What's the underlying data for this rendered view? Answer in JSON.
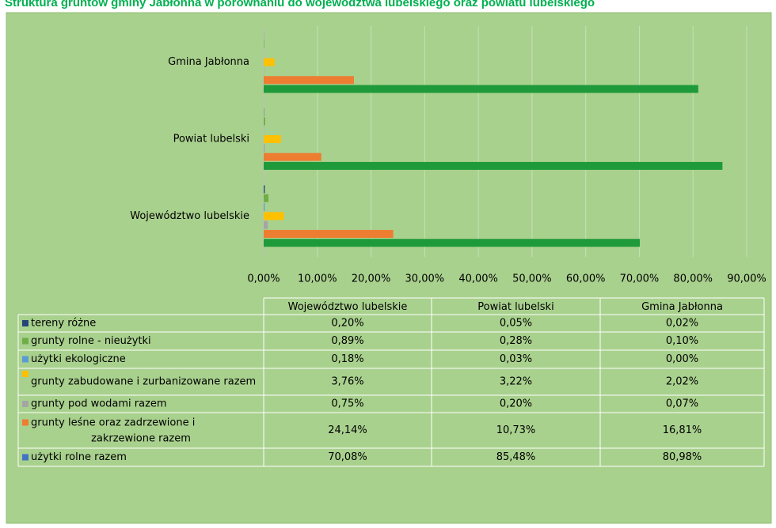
{
  "chart_data": {
    "type": "hbar",
    "title": "Struktura gruntów gminy Jabłonna w porównaniu do województwa lubelskiego oraz powiatu lubelskiego",
    "categories": [
      "Województwo lubelskie",
      "Powiat lubelski",
      "Gmina Jabłonna"
    ],
    "xlim": [
      0,
      90
    ],
    "xticks": [
      {
        "value": 0,
        "label": "0,00%"
      },
      {
        "value": 10,
        "label": "10,00%"
      },
      {
        "value": 20,
        "label": "20,00%"
      },
      {
        "value": 30,
        "label": "30,00%"
      },
      {
        "value": 40,
        "label": "40,00%"
      },
      {
        "value": 50,
        "label": "50,00%"
      },
      {
        "value": 60,
        "label": "60,00%"
      },
      {
        "value": 70,
        "label": "70,00%"
      },
      {
        "value": 80,
        "label": "80,00%"
      },
      {
        "value": 90,
        "label": "90,00%"
      }
    ],
    "grid": true,
    "series": [
      {
        "name": "tereny różne",
        "color": "#264478",
        "key_color": "#264478",
        "values": [
          0.2,
          0.05,
          0.02
        ],
        "value_labels": [
          "0,20%",
          "0,05%",
          "0,02%"
        ]
      },
      {
        "name": "grunty rolne - nieużytki",
        "color": "#70ad47",
        "key_color": "#70ad47",
        "values": [
          0.89,
          0.28,
          0.1
        ],
        "value_labels": [
          "0,89%",
          "0,28%",
          "0,10%"
        ]
      },
      {
        "name": "użytki ekologiczne",
        "color": "#5b9bd5",
        "key_color": "#5b9bd5",
        "values": [
          0.18,
          0.03,
          0.0
        ],
        "value_labels": [
          "0,18%",
          "0,03%",
          "0,00%"
        ]
      },
      {
        "name": "grunty zabudowane i zurbanizowane razem",
        "color": "#ffc000",
        "key_color": "#ffc000",
        "values": [
          3.76,
          3.22,
          2.02
        ],
        "value_labels": [
          "3,76%",
          "3,22%",
          "2,02%"
        ]
      },
      {
        "name": "grunty pod wodami razem",
        "color": "#a5a5a5",
        "key_color": "#a5a5a5",
        "values": [
          0.75,
          0.2,
          0.07
        ],
        "value_labels": [
          "0,75%",
          "0,20%",
          "0,07%"
        ]
      },
      {
        "name": "grunty leśne oraz zadrzewione i zakrzewione razem",
        "color": "#ed7d31",
        "key_color": "#ed7d31",
        "values": [
          24.14,
          10.73,
          16.81
        ],
        "value_labels": [
          "24,14%",
          "10,73%",
          "16,81%"
        ]
      },
      {
        "name": "użytki rolne razem",
        "color": "#1f9a3b",
        "key_color": "#4472c4",
        "values": [
          70.08,
          85.48,
          80.98
        ],
        "value_labels": [
          "70,08%",
          "85,48%",
          "80,98%"
        ]
      }
    ]
  }
}
